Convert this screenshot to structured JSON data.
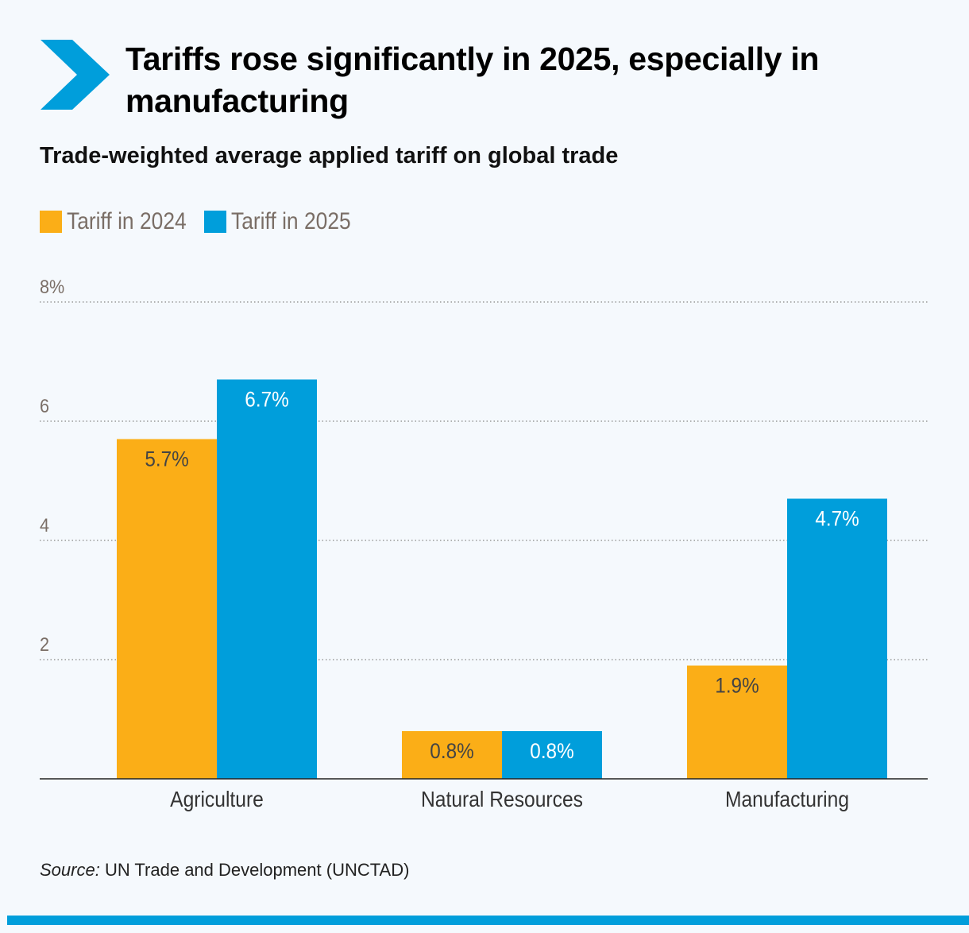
{
  "title": "Tariffs rose significantly in 2025, especially in manufacturing",
  "subtitle": "Trade-weighted average applied tariff on global trade",
  "source_label": "Source:",
  "source_text": " UN Trade and Development (UNCTAD)",
  "colors": {
    "series_2024": "#fbae17",
    "series_2025": "#009edb",
    "accent": "#009edb",
    "background": "#f5f9fd"
  },
  "logo_icon": "chevron-right-icon",
  "chart_data": {
    "type": "bar",
    "title": "Trade-weighted average applied tariff on global trade",
    "categories": [
      "Agriculture",
      "Natural Resources",
      "Manufacturing"
    ],
    "series": [
      {
        "name": "Tariff in 2024",
        "values": [
          5.7,
          0.8,
          1.9
        ],
        "labels": [
          "5.7%",
          "0.8%",
          "1.9%"
        ],
        "color": "#fbae17"
      },
      {
        "name": "Tariff in 2025",
        "values": [
          6.7,
          0.8,
          4.7
        ],
        "labels": [
          "6.7%",
          "0.8%",
          "4.7%"
        ],
        "color": "#009edb"
      }
    ],
    "ylim": [
      0,
      8
    ],
    "yticks": [
      2,
      4,
      6,
      8
    ],
    "ytick_labels": [
      "2",
      "4",
      "6",
      "8%"
    ],
    "grid": true,
    "legend": "top-left",
    "unit": "%"
  }
}
